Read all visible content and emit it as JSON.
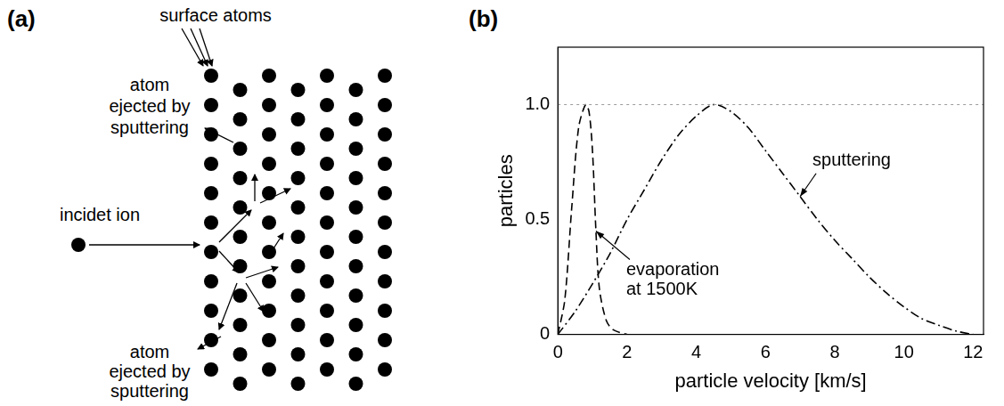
{
  "diagram": {
    "letter": "(a)",
    "surface_label": "surface atoms",
    "ion_label": "incidet ion",
    "ejected_labels": [
      [
        "atom",
        "ejected by",
        "sputtering"
      ],
      [
        "atom",
        "ejected by",
        "sputtering"
      ]
    ]
  },
  "chart_data": {
    "letter": "(b)",
    "type": "line",
    "x_label": "particle velocity [km/s]",
    "y_label": "particles",
    "xlim": [
      0,
      12.3
    ],
    "xticks": [
      0,
      2,
      4,
      6,
      8,
      10,
      12
    ],
    "ylim": [
      0,
      1.25
    ],
    "yticks": [
      0,
      0.5,
      {
        "value": 1,
        "label": "1.0"
      }
    ],
    "grid": false,
    "reference_line": 1,
    "series": [
      {
        "name": "evaporation at 1500K",
        "color": "#000000",
        "line_style": "dashed",
        "x": [
          0,
          0.2,
          0.4,
          0.6,
          0.8,
          0.9,
          1.0,
          1.1,
          1.2,
          1.4,
          1.6,
          2.0
        ],
        "values": [
          0,
          0.15,
          0.55,
          0.9,
          1.0,
          0.97,
          0.8,
          0.45,
          0.2,
          0.06,
          0.02,
          0
        ]
      },
      {
        "name": "sputtering",
        "color": "#000000",
        "line_style": "dashdot",
        "x": [
          0,
          0.5,
          1,
          1.5,
          2,
          2.5,
          3,
          3.5,
          4,
          4.5,
          5,
          5.5,
          6,
          6.5,
          7,
          7.5,
          8,
          8.5,
          9,
          9.5,
          10,
          10.5,
          11,
          11.5,
          12
        ],
        "values": [
          0,
          0.1,
          0.22,
          0.35,
          0.5,
          0.63,
          0.76,
          0.87,
          0.95,
          1.0,
          0.97,
          0.9,
          0.8,
          0.7,
          0.6,
          0.5,
          0.41,
          0.33,
          0.25,
          0.18,
          0.12,
          0.07,
          0.04,
          0.015,
          0
        ]
      }
    ],
    "annotations": [
      {
        "text": [
          "evaporation",
          "at 1500K"
        ],
        "x": 1.1,
        "y": 0.45
      },
      {
        "text": [
          "sputtering"
        ],
        "x": 7,
        "y": 0.6
      }
    ]
  }
}
